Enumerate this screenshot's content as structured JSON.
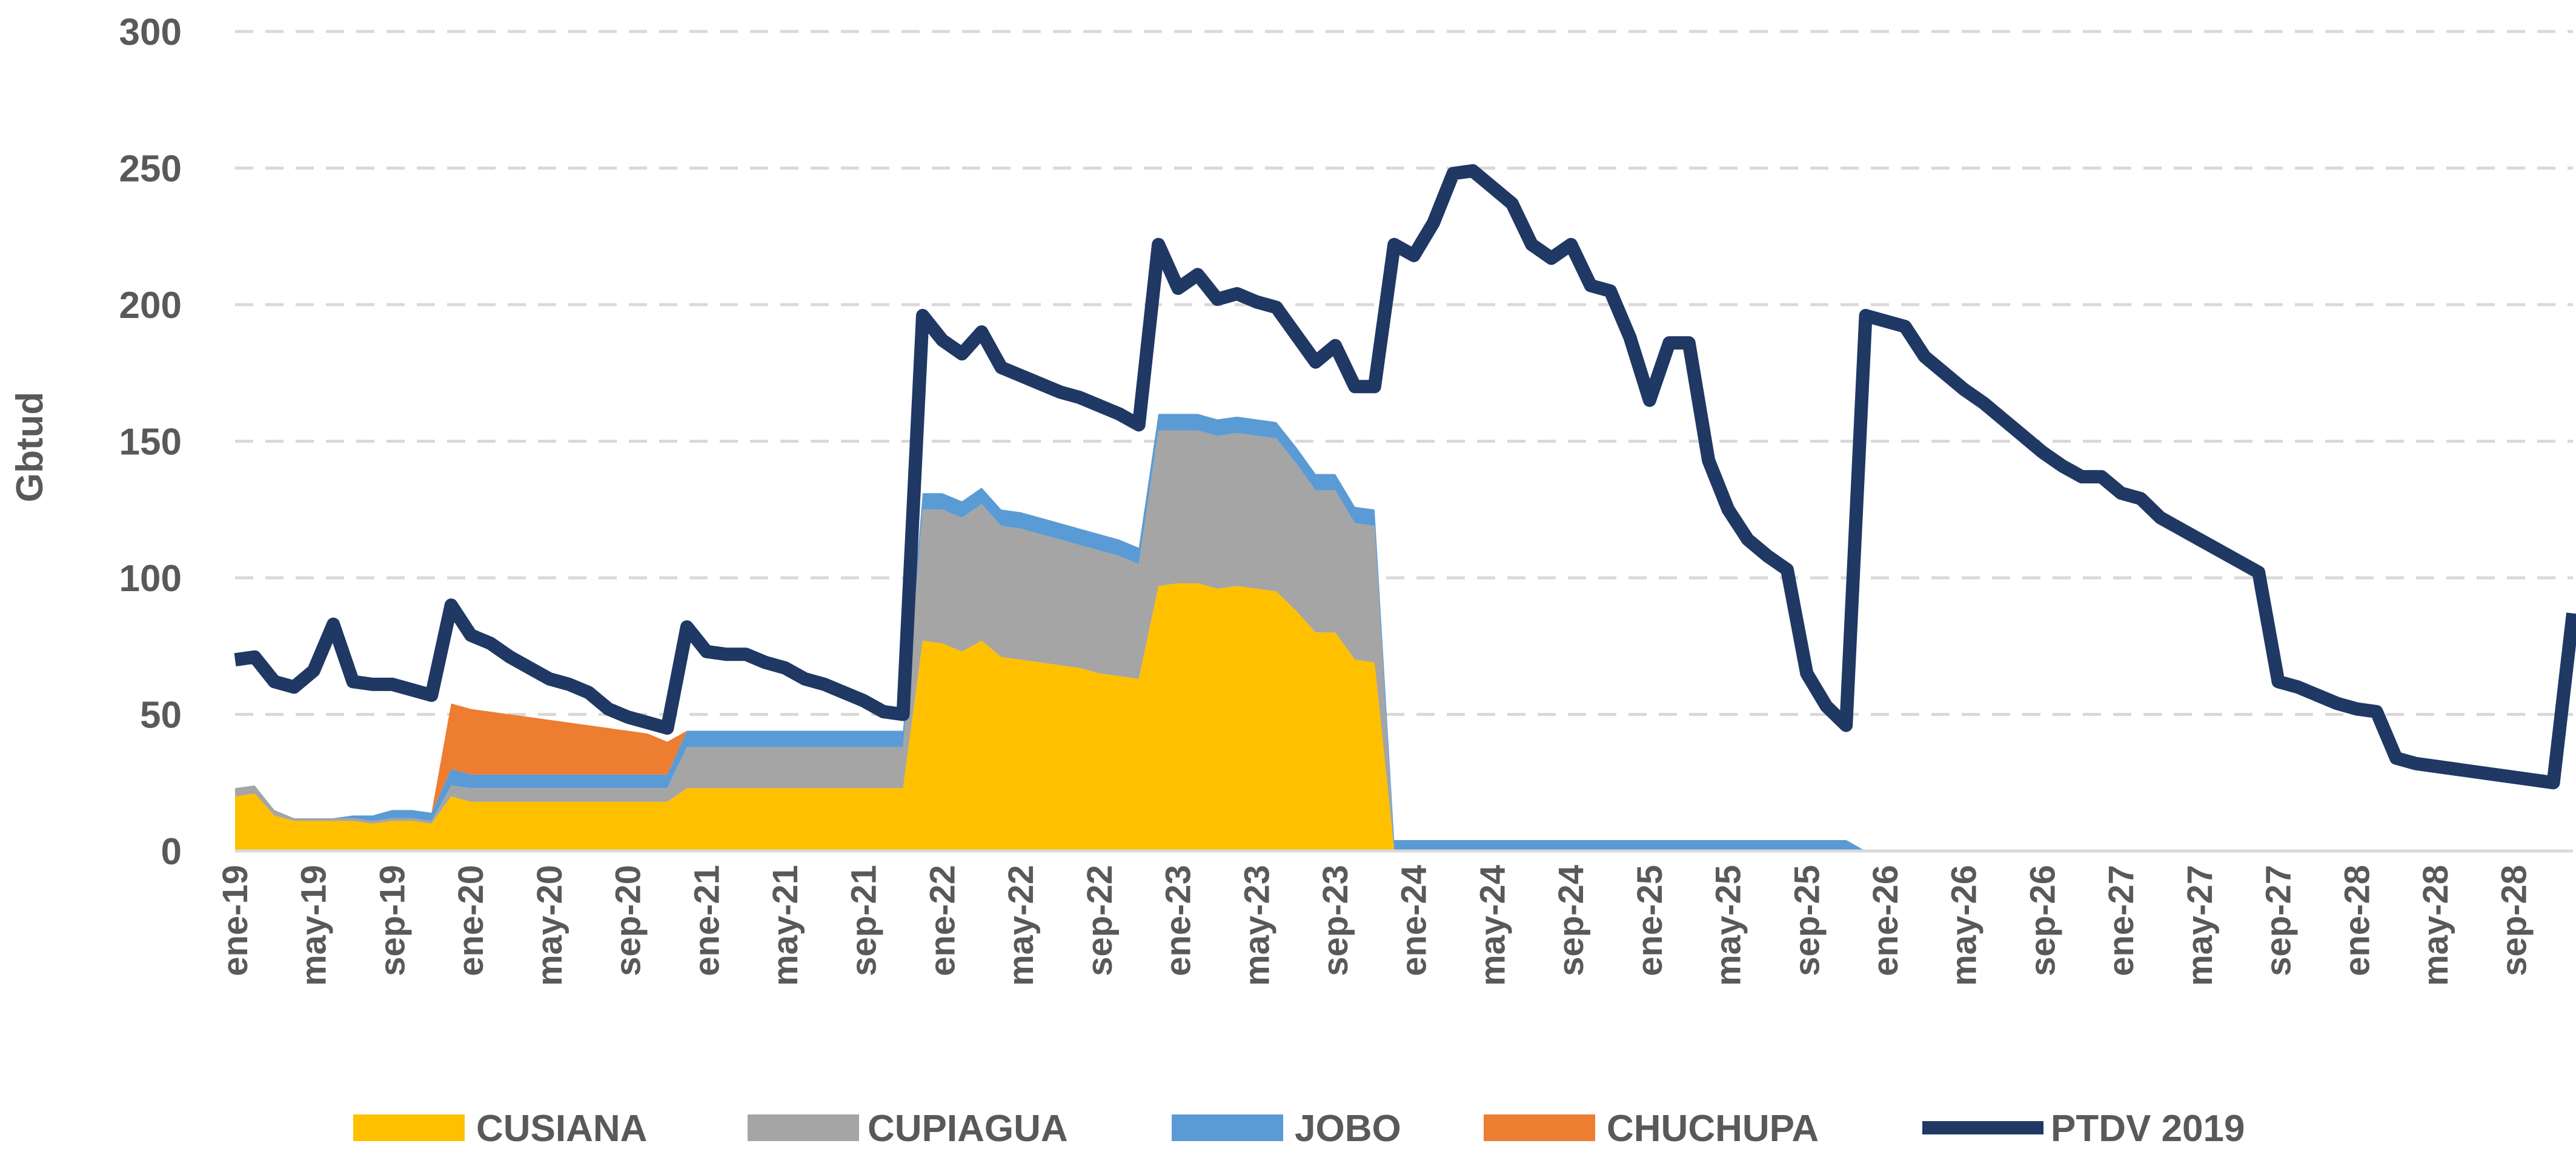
{
  "chart_data": {
    "type": "area",
    "stacked": true,
    "y_label": "Gbtud",
    "categories": [
      "ene-19",
      null,
      null,
      null,
      "may-19",
      null,
      null,
      null,
      "sep-19",
      null,
      null,
      null,
      "ene-20",
      null,
      null,
      null,
      "may-20",
      null,
      null,
      null,
      "sep-20",
      null,
      null,
      null,
      "ene-21",
      null,
      null,
      null,
      "may-21",
      null,
      null,
      null,
      "sep-21",
      null,
      null,
      null,
      "ene-22",
      null,
      null,
      null,
      "may-22",
      null,
      null,
      null,
      "sep-22",
      null,
      null,
      null,
      "ene-23",
      null,
      null,
      null,
      "may-23",
      null,
      null,
      null,
      "sep-23",
      null,
      null,
      null,
      "ene-24",
      null,
      null,
      null,
      "may-24",
      null,
      null,
      null,
      "sep-24",
      null,
      null,
      null,
      "ene-25",
      null,
      null,
      null,
      "may-25",
      null,
      null,
      null,
      "sep-25",
      null,
      null,
      null,
      "ene-26",
      null,
      null,
      null,
      "may-26",
      null,
      null,
      null,
      "sep-26",
      null,
      null,
      null,
      "ene-27",
      null,
      null,
      null,
      "may-27",
      null,
      null,
      null,
      "sep-27",
      null,
      null,
      null,
      "ene-28",
      null,
      null,
      null,
      "may-28",
      null,
      null,
      null,
      "sep-28",
      null,
      null,
      null
    ],
    "ylim": [
      0,
      300
    ],
    "yticks": [
      0,
      50,
      100,
      150,
      200,
      250,
      300
    ],
    "grid": true,
    "series": [
      {
        "name": "CUSIANA",
        "type": "area",
        "color": "#FFC000",
        "values": [
          20,
          21,
          13,
          11,
          11,
          11,
          11,
          10,
          11,
          11,
          10,
          20,
          18,
          18,
          18,
          18,
          18,
          18,
          18,
          18,
          18,
          18,
          18,
          23,
          23,
          23,
          23,
          23,
          23,
          23,
          23,
          23,
          23,
          23,
          23,
          77,
          76,
          73,
          77,
          71,
          70,
          69,
          68,
          67,
          65,
          64,
          63,
          97,
          98,
          98,
          96,
          97,
          96,
          95,
          88,
          80,
          80,
          70,
          69,
          0,
          0,
          0,
          0,
          0,
          0,
          0,
          0,
          0,
          0,
          0,
          0,
          0,
          0,
          0,
          0,
          0,
          0,
          0,
          0,
          0,
          0,
          0,
          0,
          0,
          0,
          0,
          0,
          0,
          0,
          0,
          0,
          0,
          0,
          0,
          0,
          0,
          0,
          0,
          0,
          0,
          0,
          0,
          0,
          0,
          0,
          0,
          0,
          0,
          0,
          0,
          0,
          0,
          0,
          0,
          0,
          0,
          0,
          0,
          0,
          0
        ]
      },
      {
        "name": "CUPIAGUA",
        "type": "area",
        "color": "#A5A5A5",
        "values": [
          3,
          3,
          2,
          1,
          1,
          1,
          1,
          1,
          1,
          1,
          1,
          4,
          5,
          5,
          5,
          5,
          5,
          5,
          5,
          5,
          5,
          5,
          5,
          15,
          15,
          15,
          15,
          15,
          15,
          15,
          15,
          15,
          15,
          15,
          15,
          48,
          49,
          49,
          50,
          48,
          48,
          47,
          46,
          45,
          45,
          44,
          42,
          57,
          56,
          56,
          56,
          56,
          56,
          56,
          54,
          52,
          52,
          50,
          50,
          0,
          0,
          0,
          0,
          0,
          0,
          0,
          0,
          0,
          0,
          0,
          0,
          0,
          0,
          0,
          0,
          0,
          0,
          0,
          0,
          0,
          0,
          0,
          0,
          0,
          0,
          0,
          0,
          0,
          0,
          0,
          0,
          0,
          0,
          0,
          0,
          0,
          0,
          0,
          0,
          0,
          0,
          0,
          0,
          0,
          0,
          0,
          0,
          0,
          0,
          0,
          0,
          0,
          0,
          0,
          0,
          0,
          0,
          0,
          0,
          0
        ]
      },
      {
        "name": "JOBO",
        "type": "area",
        "color": "#5B9BD5",
        "values": [
          0,
          0,
          0,
          0,
          0,
          0,
          1,
          2,
          3,
          3,
          3,
          6,
          5,
          5,
          5,
          5,
          5,
          5,
          5,
          5,
          5,
          5,
          5,
          6,
          6,
          6,
          6,
          6,
          6,
          6,
          6,
          6,
          6,
          6,
          6,
          6,
          6,
          6,
          6,
          6,
          6,
          6,
          6,
          6,
          6,
          6,
          6,
          6,
          6,
          6,
          6,
          6,
          6,
          6,
          6,
          6,
          6,
          6,
          6,
          4,
          4,
          4,
          4,
          4,
          4,
          4,
          4,
          4,
          4,
          4,
          4,
          4,
          4,
          4,
          4,
          4,
          4,
          4,
          4,
          4,
          4,
          4,
          4,
          0,
          0,
          0,
          0,
          0,
          0,
          0,
          0,
          0,
          0,
          0,
          0,
          0,
          0,
          0,
          0,
          0,
          0,
          0,
          0,
          0,
          0,
          0,
          0,
          0,
          0,
          0,
          0,
          0,
          0,
          0,
          0,
          0,
          0,
          0,
          0,
          0
        ]
      },
      {
        "name": "CHUCHUPA",
        "type": "area",
        "color": "#ED7D31",
        "values": [
          0,
          0,
          0,
          0,
          0,
          0,
          0,
          0,
          0,
          0,
          0,
          24,
          24,
          23,
          22,
          21,
          20,
          19,
          18,
          17,
          16,
          15,
          12,
          0,
          0,
          0,
          0,
          0,
          0,
          0,
          0,
          0,
          0,
          0,
          0,
          0,
          0,
          0,
          0,
          0,
          0,
          0,
          0,
          0,
          0,
          0,
          0,
          0,
          0,
          0,
          0,
          0,
          0,
          0,
          0,
          0,
          0,
          0,
          0,
          0,
          0,
          0,
          0,
          0,
          0,
          0,
          0,
          0,
          0,
          0,
          0,
          0,
          0,
          0,
          0,
          0,
          0,
          0,
          0,
          0,
          0,
          0,
          0,
          0,
          0,
          0,
          0,
          0,
          0,
          0,
          0,
          0,
          0,
          0,
          0,
          0,
          0,
          0,
          0,
          0,
          0,
          0,
          0,
          0,
          0,
          0,
          0,
          0,
          0,
          0,
          0,
          0,
          0,
          0,
          0,
          0,
          0,
          0,
          0,
          0
        ]
      },
      {
        "name": "PTDV 2019",
        "type": "line",
        "color": "#1F3864",
        "values": [
          70,
          71,
          62,
          60,
          66,
          83,
          62,
          61,
          61,
          59,
          57,
          90,
          79,
          76,
          71,
          67,
          63,
          61,
          58,
          52,
          49,
          47,
          45,
          82,
          73,
          72,
          72,
          69,
          67,
          63,
          61,
          58,
          55,
          51,
          50,
          196,
          187,
          182,
          190,
          177,
          174,
          171,
          168,
          166,
          163,
          160,
          156,
          222,
          206,
          211,
          202,
          204,
          201,
          199,
          189,
          179,
          185,
          170,
          170,
          222,
          218,
          230,
          248,
          249,
          243,
          237,
          222,
          217,
          222,
          207,
          205,
          188,
          165,
          186,
          186,
          143,
          125,
          114,
          108,
          103,
          65,
          53,
          46,
          196,
          194,
          192,
          181,
          175,
          169,
          164,
          158,
          152,
          146,
          141,
          137,
          137,
          131,
          129,
          122,
          118,
          114,
          110,
          106,
          102,
          62,
          60,
          57,
          54,
          52,
          51,
          34,
          32,
          31,
          30,
          29,
          28,
          27,
          26,
          25,
          87
        ]
      }
    ]
  }
}
